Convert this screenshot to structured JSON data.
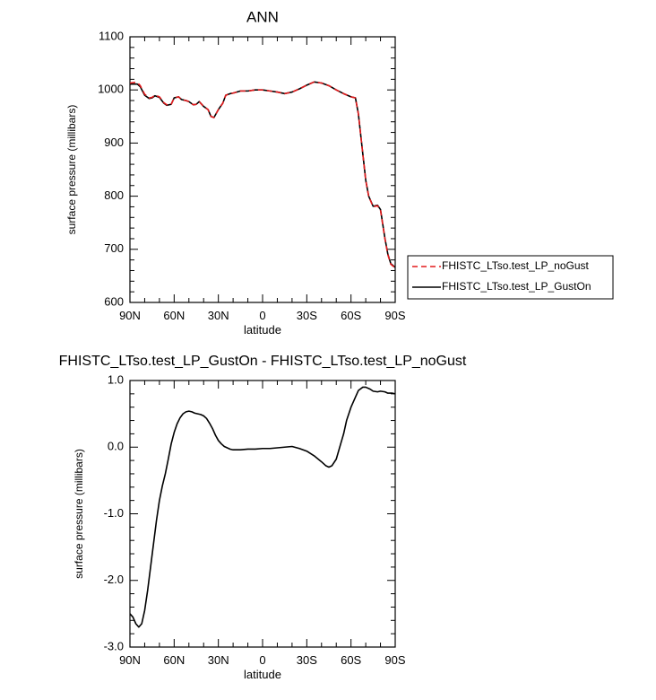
{
  "chart_data": [
    {
      "type": "line",
      "title": "ANN",
      "xlabel": "latitude",
      "ylabel": "surface pressure (millibars)",
      "xlim": [
        -90,
        90
      ],
      "ylim": [
        600,
        1100
      ],
      "xticks": [
        -90,
        -60,
        -30,
        0,
        30,
        60,
        90
      ],
      "xtick_labels": [
        "90N",
        "60N",
        "30N",
        "0",
        "30S",
        "60S",
        "90S"
      ],
      "yticks": [
        600,
        700,
        800,
        900,
        1000,
        1100
      ],
      "ytick_labels": [
        "600",
        "700",
        "800",
        "900",
        "1000",
        "1100"
      ],
      "legend_position": "outside-right",
      "series": [
        {
          "name": "FHISTC_LTso.test_LP_noGust",
          "color": "#e41a1c",
          "dash": "dashed",
          "x": [
            -90,
            -87,
            -85,
            -83,
            -80,
            -77,
            -75,
            -73,
            -70,
            -67,
            -65,
            -62,
            -60,
            -57,
            -55,
            -52,
            -50,
            -47,
            -45,
            -43,
            -40,
            -37,
            -35,
            -33,
            -30,
            -27,
            -25,
            -22,
            -20,
            -15,
            -10,
            -5,
            0,
            5,
            10,
            15,
            20,
            25,
            30,
            35,
            40,
            45,
            50,
            55,
            60,
            63,
            65,
            68,
            70,
            72,
            75,
            78,
            80,
            83,
            85,
            87,
            90
          ],
          "y": [
            1013,
            1014,
            1014,
            1008,
            992,
            985,
            986,
            990,
            987,
            976,
            972,
            973,
            985,
            987,
            982,
            980,
            978,
            972,
            973,
            978,
            969,
            963,
            950,
            948,
            963,
            975,
            990,
            993,
            994,
            998,
            998,
            1000,
            1000,
            998,
            996,
            993,
            996,
            1002,
            1009,
            1015,
            1013,
            1008,
            1000,
            993,
            987,
            985,
            955,
            880,
            830,
            800,
            780,
            782,
            774,
            720,
            690,
            672,
            665
          ]
        },
        {
          "name": "FHISTC_LTso.test_LP_GustOn",
          "color": "#000000",
          "dash": "solid",
          "x": [
            -90,
            -87,
            -85,
            -83,
            -80,
            -77,
            -75,
            -73,
            -70,
            -67,
            -65,
            -62,
            -60,
            -57,
            -55,
            -52,
            -50,
            -47,
            -45,
            -43,
            -40,
            -37,
            -35,
            -33,
            -30,
            -27,
            -25,
            -22,
            -20,
            -15,
            -10,
            -5,
            0,
            5,
            10,
            15,
            20,
            25,
            30,
            35,
            40,
            45,
            50,
            55,
            60,
            63,
            65,
            68,
            70,
            72,
            75,
            78,
            80,
            83,
            85,
            87,
            90
          ],
          "y": [
            1011,
            1011,
            1011,
            1006,
            990,
            984,
            985,
            989,
            986,
            975,
            971,
            973,
            985,
            987,
            982,
            980,
            978,
            972,
            973,
            978,
            969,
            963,
            950,
            948,
            963,
            975,
            990,
            993,
            994,
            998,
            998,
            1000,
            1000,
            998,
            996,
            993,
            996,
            1002,
            1009,
            1015,
            1013,
            1008,
            1000,
            993,
            987,
            985,
            955,
            880,
            830,
            800,
            781,
            783,
            775,
            721,
            691,
            673,
            666
          ]
        }
      ]
    },
    {
      "type": "line",
      "title": "FHISTC_LTso.test_LP_GustOn - FHISTC_LTso.test_LP_noGust",
      "xlabel": "latitude",
      "ylabel": "surface pressure (millibars)",
      "xlim": [
        -90,
        90
      ],
      "ylim": [
        -3.0,
        1.0
      ],
      "xticks": [
        -90,
        -60,
        -30,
        0,
        30,
        60,
        90
      ],
      "xtick_labels": [
        "90N",
        "60N",
        "30N",
        "0",
        "30S",
        "60S",
        "90S"
      ],
      "yticks": [
        -3.0,
        -2.0,
        -1.0,
        0.0,
        1.0
      ],
      "ytick_labels": [
        "-3.0",
        "-2.0",
        "-1.0",
        "0.0",
        "1.0"
      ],
      "series": [
        {
          "color": "#000000",
          "dash": "solid",
          "x": [
            -90,
            -88,
            -86,
            -84,
            -82,
            -80,
            -78,
            -76,
            -74,
            -72,
            -70,
            -68,
            -66,
            -64,
            -62,
            -60,
            -58,
            -56,
            -54,
            -52,
            -50,
            -48,
            -46,
            -44,
            -42,
            -40,
            -38,
            -36,
            -34,
            -32,
            -30,
            -28,
            -26,
            -24,
            -22,
            -20,
            -15,
            -10,
            -5,
            0,
            5,
            10,
            15,
            20,
            25,
            30,
            35,
            40,
            43,
            45,
            47,
            50,
            53,
            55,
            57,
            60,
            63,
            65,
            68,
            70,
            73,
            75,
            78,
            80,
            83,
            85,
            88,
            90
          ],
          "y": [
            -2.5,
            -2.55,
            -2.65,
            -2.7,
            -2.65,
            -2.45,
            -2.15,
            -1.8,
            -1.45,
            -1.1,
            -0.8,
            -0.58,
            -0.4,
            -0.18,
            0.05,
            0.22,
            0.35,
            0.44,
            0.5,
            0.53,
            0.54,
            0.53,
            0.51,
            0.5,
            0.49,
            0.47,
            0.43,
            0.36,
            0.28,
            0.18,
            0.1,
            0.05,
            0.01,
            -0.01,
            -0.03,
            -0.04,
            -0.04,
            -0.03,
            -0.03,
            -0.02,
            -0.02,
            -0.01,
            0.0,
            0.01,
            -0.02,
            -0.06,
            -0.13,
            -0.22,
            -0.28,
            -0.3,
            -0.28,
            -0.18,
            0.05,
            0.2,
            0.4,
            0.6,
            0.75,
            0.85,
            0.9,
            0.9,
            0.87,
            0.84,
            0.83,
            0.84,
            0.83,
            0.81,
            0.81,
            0.8
          ]
        }
      ]
    }
  ]
}
